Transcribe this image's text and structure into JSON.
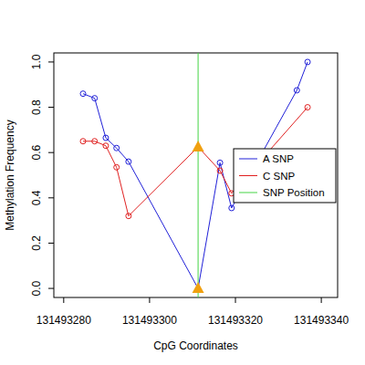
{
  "chart_data": {
    "type": "line",
    "x_label": "CpG Coordinates",
    "y_label": "Methylation Frequency",
    "xlim": [
      131493277.7,
      131493343.8
    ],
    "ylim": [
      -0.04,
      1.04
    ],
    "xticks": [
      131493280,
      131493300,
      131493320,
      131493340
    ],
    "yticks": [
      {
        "value": 0,
        "label": "0.0"
      },
      {
        "value": 0.2,
        "label": "0.2"
      },
      {
        "value": 0.4,
        "label": "0.4"
      },
      {
        "value": 0.6,
        "label": "0.6"
      },
      {
        "value": 0.8,
        "label": "0.8"
      },
      {
        "value": 1,
        "label": "1.0"
      }
    ],
    "legend": "right",
    "series": [
      {
        "name": "A SNP",
        "color": "#2020d8",
        "marker": "circle",
        "x": [
          131493284.5,
          131493287.2,
          131493289.8,
          131493292.3,
          131493295.1,
          131493311.3,
          131493316.4,
          131493319.1,
          131493334.3,
          131493336.8
        ],
        "values": [
          0.86,
          0.84,
          0.665,
          0.62,
          0.56,
          0.0,
          0.555,
          0.355,
          0.875,
          1.0
        ]
      },
      {
        "name": "C SNP",
        "color": "#e02020",
        "marker": "circle",
        "x": [
          131493284.5,
          131493287.2,
          131493289.8,
          131493292.3,
          131493295.1,
          131493311.3,
          131493316.4,
          131493319.1,
          131493336.8
        ],
        "values": [
          0.65,
          0.65,
          0.63,
          0.535,
          0.32,
          0.625,
          0.52,
          0.42,
          0.8
        ]
      },
      {
        "name": "SNP Position",
        "type": "vline",
        "color": "#44d444",
        "x": [
          131493311.3
        ]
      }
    ]
  }
}
